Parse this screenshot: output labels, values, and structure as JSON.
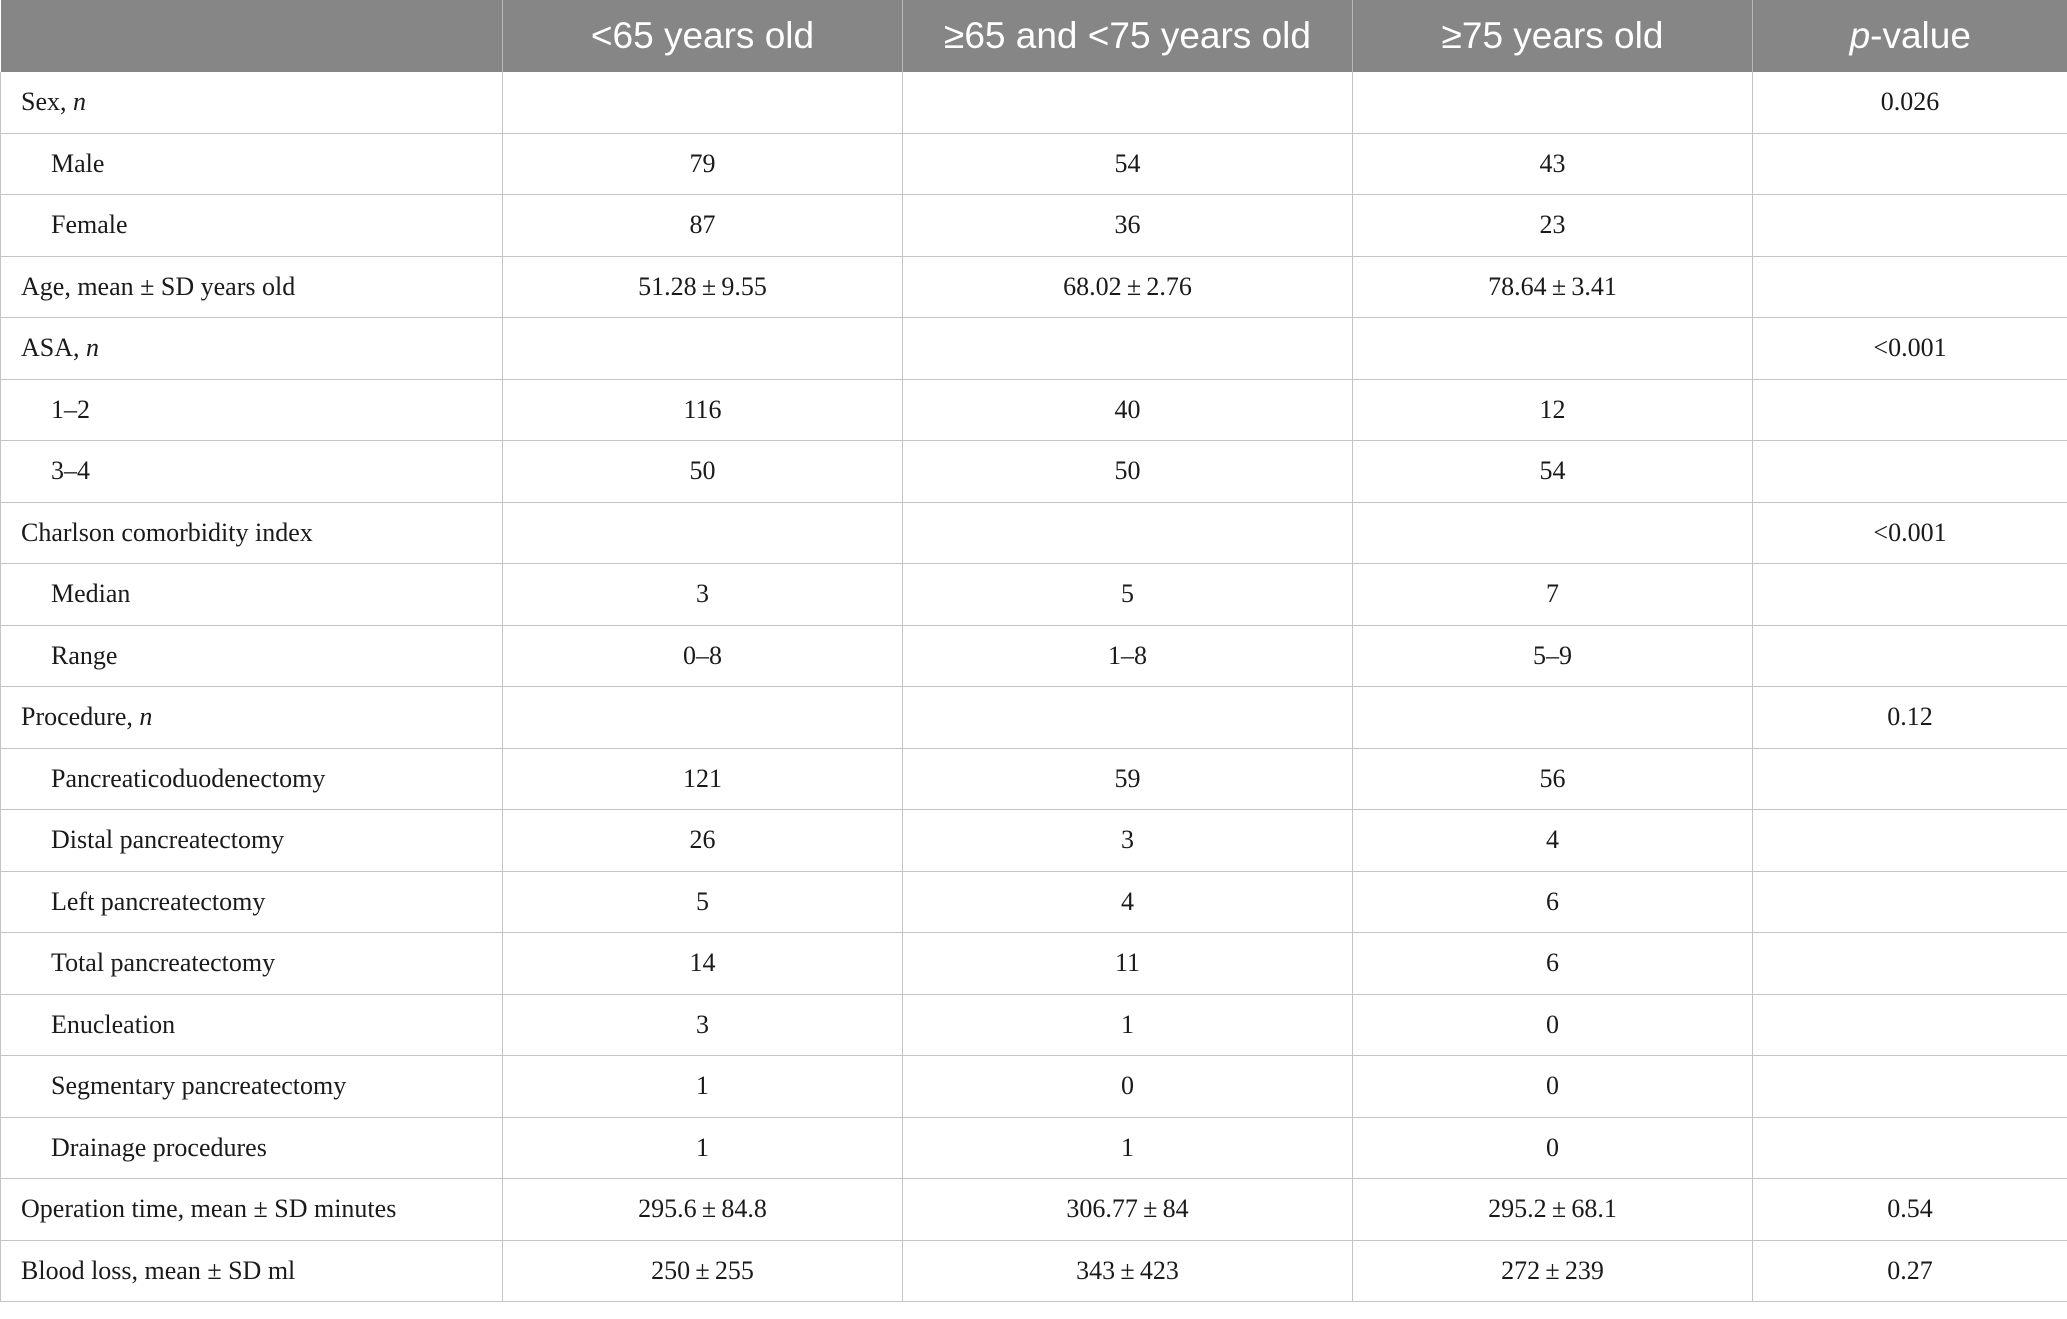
{
  "table": {
    "headers": [
      "<65 years old",
      "≥65 and <75 years old",
      "≥75 years old",
      "p",
      "-value"
    ],
    "rows": [
      {
        "label": "Sex, ",
        "label_it": "n",
        "c1": "",
        "c2": "",
        "c3": "",
        "p": "0.026"
      },
      {
        "label": "Male",
        "label_it": "",
        "c1": "79",
        "c2": "54",
        "c3": "43",
        "p": ""
      },
      {
        "label": "Female",
        "label_it": "",
        "c1": "87",
        "c2": "36",
        "c3": "23",
        "p": ""
      },
      {
        "label": "Age, mean ± SD years old",
        "label_it": "",
        "c1": "51.28 ± 9.55",
        "c2": "68.02 ± 2.76",
        "c3": "78.64 ± 3.41",
        "p": ""
      },
      {
        "label": "ASA, ",
        "label_it": "n",
        "c1": "",
        "c2": "",
        "c3": "",
        "p": "<0.001"
      },
      {
        "label": "1–2",
        "label_it": "",
        "c1": "116",
        "c2": "40",
        "c3": "12",
        "p": ""
      },
      {
        "label": "3–4",
        "label_it": "",
        "c1": "50",
        "c2": "50",
        "c3": "54",
        "p": ""
      },
      {
        "label": "Charlson comorbidity index",
        "label_it": "",
        "c1": "",
        "c2": "",
        "c3": "",
        "p": "<0.001"
      },
      {
        "label": "Median",
        "label_it": "",
        "c1": "3",
        "c2": "5",
        "c3": "7",
        "p": ""
      },
      {
        "label": "Range",
        "label_it": "",
        "c1": "0–8",
        "c2": "1–8",
        "c3": "5–9",
        "p": ""
      },
      {
        "label": "Procedure, ",
        "label_it": "n",
        "c1": "",
        "c2": "",
        "c3": "",
        "p": "0.12"
      },
      {
        "label": "Pancreaticoduodenectomy",
        "label_it": "",
        "c1": "121",
        "c2": "59",
        "c3": "56",
        "p": ""
      },
      {
        "label": "Distal pancreatectomy",
        "label_it": "",
        "c1": "26",
        "c2": "3",
        "c3": "4",
        "p": ""
      },
      {
        "label": "Left pancreatectomy",
        "label_it": "",
        "c1": "5",
        "c2": "4",
        "c3": "6",
        "p": ""
      },
      {
        "label": "Total pancreatectomy",
        "label_it": "",
        "c1": "14",
        "c2": "11",
        "c3": "6",
        "p": ""
      },
      {
        "label": "Enucleation",
        "label_it": "",
        "c1": "3",
        "c2": "1",
        "c3": "0",
        "p": ""
      },
      {
        "label": "Segmentary pancreatectomy",
        "label_it": "",
        "c1": "1",
        "c2": "0",
        "c3": "0",
        "p": ""
      },
      {
        "label": "Drainage procedures",
        "label_it": "",
        "c1": "1",
        "c2": "1",
        "c3": "0",
        "p": ""
      },
      {
        "label": "Operation time, mean ± SD minutes",
        "label_it": "",
        "c1": "295.6 ± 84.8",
        "c2": "306.77 ± 84",
        "c3": "295.2 ± 68.1",
        "p": "0.54"
      },
      {
        "label": "Blood loss, mean ± SD ml",
        "label_it": "",
        "c1": "250 ± 255",
        "c2": "343 ± 423",
        "c3": "272 ± 239",
        "p": "0.27"
      }
    ]
  }
}
